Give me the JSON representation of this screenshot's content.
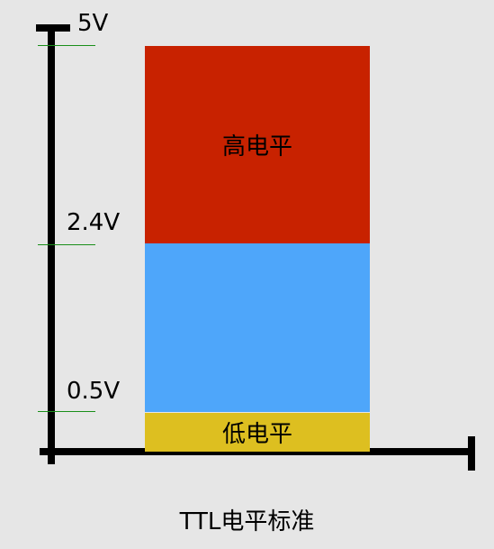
{
  "axis_labels": {
    "top": "5V",
    "mid": "2.4V",
    "low": "0.5V"
  },
  "bands": {
    "high_label": "高电平",
    "low_label": "低电平"
  },
  "caption": "TTL电平标准",
  "colors": {
    "high": "#c82200",
    "undefined_region": "#4ea6fa",
    "low": "#ddbf20",
    "tick": "#1a8f1a"
  }
}
